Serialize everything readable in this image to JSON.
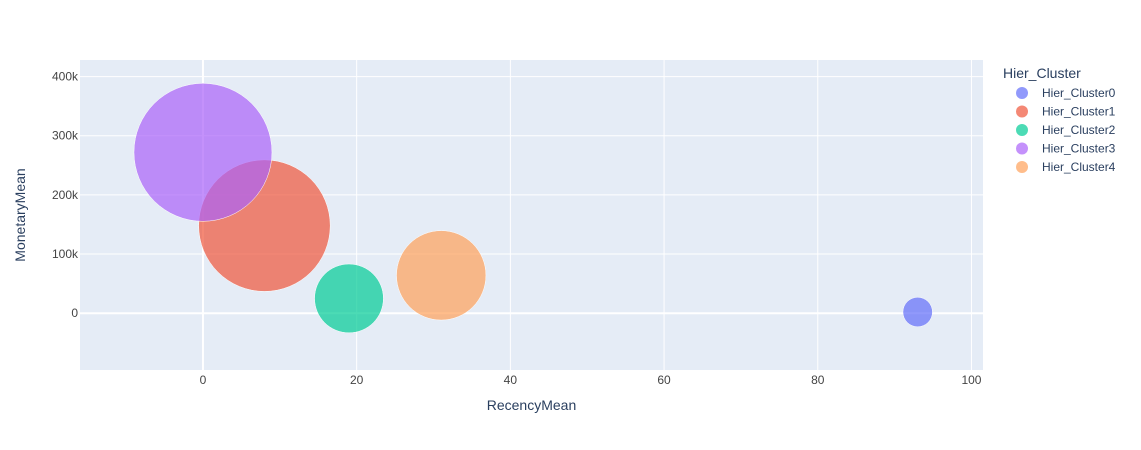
{
  "chart_data": {
    "type": "scatter",
    "title": "",
    "xlabel": "RecencyMean",
    "ylabel": "MonetaryMean",
    "xlim": [
      -16,
      101.5
    ],
    "ylim": [
      -96000,
      428000
    ],
    "x_ticks": [
      0,
      20,
      40,
      60,
      80,
      100
    ],
    "x_tick_labels": [
      "0",
      "20",
      "40",
      "60",
      "80",
      "100"
    ],
    "y_ticks": [
      0,
      100000,
      200000,
      300000,
      400000
    ],
    "y_tick_labels": [
      "0",
      "100k",
      "200k",
      "300k",
      "400k"
    ],
    "grid": true,
    "legend": {
      "title": "Hier_Cluster",
      "placement": "right"
    },
    "series": [
      {
        "name": "Hier_Cluster0",
        "color": "#636efa",
        "x": 93,
        "y": 2000,
        "size": 1.6
      },
      {
        "name": "Hier_Cluster1",
        "color": "#ef553b",
        "x": 8,
        "y": 148000,
        "size": 31.8
      },
      {
        "name": "Hier_Cluster2",
        "color": "#00cc96",
        "x": 19,
        "y": 25000,
        "size": 8.7
      },
      {
        "name": "Hier_Cluster3",
        "color": "#ab63fa",
        "x": 0,
        "y": 272000,
        "size": 35
      },
      {
        "name": "Hier_Cluster4",
        "color": "#ffa15a",
        "x": 31,
        "y": 64000,
        "size": 14.7
      }
    ]
  }
}
